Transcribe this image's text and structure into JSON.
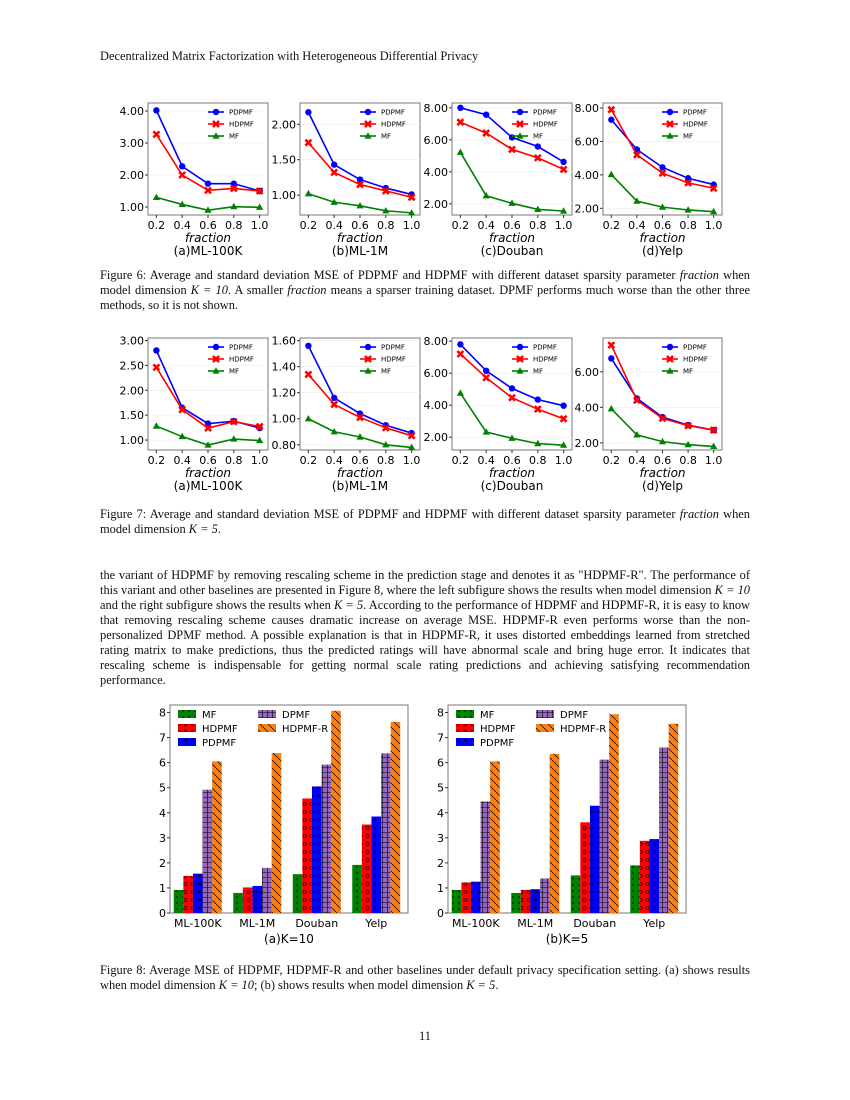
{
  "header": "Decentralized Matrix Factorization with Heterogeneous Differential Privacy",
  "page_number": "11",
  "fig6_caption": {
    "a": "Figure 6:  Average and standard deviation MSE of PDPMF and HDPMF with different dataset sparsity parameter ",
    "m1": "fraction",
    "b": " when model dimension ",
    "m2": "K = 10",
    "c": ". A smaller ",
    "m3": "fraction",
    "d": " means a sparser training dataset. DPMF performs much worse than the other three methods, so it is not shown."
  },
  "fig7_caption": {
    "a": "Figure 7:  Average and standard deviation MSE of PDPMF and HDPMF with different dataset sparsity parameter ",
    "m1": "fraction",
    "b": " when model dimension ",
    "m2": "K = 5",
    "c": "."
  },
  "body": {
    "a": "the variant of HDPMF by removing rescaling scheme in the prediction stage and denotes it as \"HDPMF-R\".  The performance of this variant and other baselines are presented in Figure 8, where the left subfigure shows the results when model dimension ",
    "m1": "K = 10",
    "b": " and the right subfigure shows the results when ",
    "m2": "K = 5",
    "c": ". According to the performance of HDPMF and HDPMF-R, it is easy to know that removing rescaling scheme causes dramatic increase on average MSE. HDPMF-R even performs worse than the non-personalized DPMF method. A possible explanation is that in HDPMF-R, it uses distorted embeddings learned from stretched rating matrix to make predictions, thus the predicted ratings will have abnormal scale and bring huge error. It indicates that rescaling scheme is indispensable for getting normal scale rating predictions and achieving satisfying recommendation performance."
  },
  "fig8_caption": {
    "a": "Figure 8: Average MSE of HDPMF, HDPMF-R and other baselines under default privacy specification setting. (a) shows results when model dimension ",
    "m1": "K = 10",
    "b": "; (b) shows results when model dimension ",
    "m2": "K = 5",
    "c": "."
  },
  "colors": {
    "PDPMF": "#0000ff",
    "HDPMF": "#ff0000",
    "MF": "#008000",
    "DPMF": "#9467bd",
    "HDPMF-R": "#ff7f0e"
  },
  "chart_data": [
    {
      "figure": "6",
      "type": "line",
      "subtitle": "(a)ML-100K",
      "xlabel": "fraction",
      "x": [
        0.2,
        0.4,
        0.6,
        0.8,
        1.0
      ],
      "ylim": [
        0.75,
        4.25
      ],
      "yticks": [
        1,
        2,
        3,
        4
      ],
      "legend": "top-right",
      "series": [
        {
          "name": "PDPMF",
          "values": [
            4.02,
            2.27,
            1.73,
            1.73,
            1.5
          ]
        },
        {
          "name": "HDPMF",
          "values": [
            3.27,
            2.0,
            1.52,
            1.58,
            1.5
          ]
        },
        {
          "name": "MF",
          "values": [
            1.3,
            1.08,
            0.9,
            1.01,
            0.99
          ]
        }
      ]
    },
    {
      "figure": "6",
      "type": "line",
      "subtitle": "(b)ML-1M",
      "xlabel": "fraction",
      "x": [
        0.2,
        0.4,
        0.6,
        0.8,
        1.0
      ],
      "ylim": [
        0.72,
        2.3
      ],
      "yticks": [
        1.0,
        1.5,
        2.0
      ],
      "legend": "top-right",
      "series": [
        {
          "name": "PDPMF",
          "values": [
            2.17,
            1.43,
            1.22,
            1.1,
            1.01
          ]
        },
        {
          "name": "HDPMF",
          "values": [
            1.74,
            1.32,
            1.15,
            1.06,
            0.97
          ]
        },
        {
          "name": "MF",
          "values": [
            1.02,
            0.9,
            0.85,
            0.78,
            0.75
          ]
        }
      ]
    },
    {
      "figure": "6",
      "type": "line",
      "subtitle": "(c)Douban",
      "xlabel": "fraction",
      "x": [
        0.2,
        0.4,
        0.6,
        0.8,
        1.0
      ],
      "ylim": [
        1.3,
        8.3
      ],
      "yticks": [
        2,
        4,
        6,
        8
      ],
      "legend": "top-right",
      "series": [
        {
          "name": "PDPMF",
          "values": [
            8.0,
            7.57,
            6.15,
            5.58,
            4.62
          ]
        },
        {
          "name": "HDPMF",
          "values": [
            7.1,
            6.42,
            5.4,
            4.87,
            4.15
          ]
        },
        {
          "name": "MF",
          "values": [
            5.22,
            2.5,
            2.03,
            1.65,
            1.55
          ]
        }
      ]
    },
    {
      "figure": "6",
      "type": "line",
      "subtitle": "(d)Yelp",
      "xlabel": "fraction",
      "x": [
        0.2,
        0.4,
        0.6,
        0.8,
        1.0
      ],
      "ylim": [
        1.6,
        8.3
      ],
      "yticks": [
        2,
        4,
        6,
        8
      ],
      "legend": "top-right",
      "series": [
        {
          "name": "PDPMF",
          "values": [
            7.3,
            5.52,
            4.45,
            3.8,
            3.42
          ]
        },
        {
          "name": "HDPMF",
          "values": [
            7.9,
            5.2,
            4.1,
            3.52,
            3.2
          ]
        },
        {
          "name": "MF",
          "values": [
            4.02,
            2.43,
            2.07,
            1.9,
            1.8
          ]
        }
      ]
    },
    {
      "figure": "7",
      "type": "line",
      "subtitle": "(a)ML-100K",
      "xlabel": "fraction",
      "x": [
        0.2,
        0.4,
        0.6,
        0.8,
        1.0
      ],
      "ylim": [
        0.8,
        3.05
      ],
      "yticks": [
        1.0,
        1.5,
        2.0,
        2.5,
        3.0
      ],
      "legend": "top-right",
      "series": [
        {
          "name": "PDPMF",
          "values": [
            2.8,
            1.65,
            1.33,
            1.38,
            1.24
          ]
        },
        {
          "name": "HDPMF",
          "values": [
            2.46,
            1.61,
            1.24,
            1.37,
            1.27
          ]
        },
        {
          "name": "MF",
          "values": [
            1.28,
            1.07,
            0.9,
            1.02,
            0.99
          ]
        }
      ]
    },
    {
      "figure": "7",
      "type": "line",
      "subtitle": "(b)ML-1M",
      "xlabel": "fraction",
      "x": [
        0.2,
        0.4,
        0.6,
        0.8,
        1.0
      ],
      "ylim": [
        0.76,
        1.62
      ],
      "yticks": [
        0.8,
        1.0,
        1.2,
        1.4,
        1.6
      ],
      "legend": "top-right",
      "series": [
        {
          "name": "PDPMF",
          "values": [
            1.56,
            1.16,
            1.04,
            0.95,
            0.89
          ]
        },
        {
          "name": "HDPMF",
          "values": [
            1.34,
            1.11,
            1.01,
            0.93,
            0.87
          ]
        },
        {
          "name": "MF",
          "values": [
            1.0,
            0.9,
            0.86,
            0.8,
            0.78
          ]
        }
      ]
    },
    {
      "figure": "7",
      "type": "line",
      "subtitle": "(c)Douban",
      "xlabel": "fraction",
      "x": [
        0.2,
        0.4,
        0.6,
        0.8,
        1.0
      ],
      "ylim": [
        1.2,
        8.2
      ],
      "yticks": [
        2,
        4,
        6,
        8
      ],
      "legend": "top-right",
      "series": [
        {
          "name": "PDPMF",
          "values": [
            7.8,
            6.15,
            5.05,
            4.35,
            3.97
          ]
        },
        {
          "name": "HDPMF",
          "values": [
            7.2,
            5.72,
            4.47,
            3.75,
            3.15
          ]
        },
        {
          "name": "MF",
          "values": [
            4.75,
            2.32,
            1.93,
            1.6,
            1.5
          ]
        }
      ]
    },
    {
      "figure": "7",
      "type": "line",
      "subtitle": "(d)Yelp",
      "xlabel": "fraction",
      "x": [
        0.2,
        0.4,
        0.6,
        0.8,
        1.0
      ],
      "ylim": [
        1.6,
        7.9
      ],
      "yticks": [
        2,
        4,
        6
      ],
      "legend": "top-right",
      "series": [
        {
          "name": "PDPMF",
          "values": [
            6.75,
            4.5,
            3.45,
            3.0,
            2.72
          ]
        },
        {
          "name": "HDPMF",
          "values": [
            7.5,
            4.4,
            3.38,
            2.97,
            2.72
          ]
        },
        {
          "name": "MF",
          "values": [
            3.92,
            2.45,
            2.07,
            1.9,
            1.8
          ]
        }
      ]
    },
    {
      "figure": "8",
      "type": "bar",
      "subtitle": "(a)K=10",
      "categories": [
        "ML-100K",
        "ML-1M",
        "Douban",
        "Yelp"
      ],
      "ylim": [
        0,
        8.3
      ],
      "yticks": [
        0,
        1,
        2,
        3,
        4,
        5,
        6,
        7,
        8
      ],
      "legend": "top-left",
      "series": [
        {
          "name": "MF",
          "values": [
            0.92,
            0.8,
            1.55,
            1.92
          ]
        },
        {
          "name": "HDPMF",
          "values": [
            1.48,
            1.02,
            4.57,
            3.53
          ]
        },
        {
          "name": "PDPMF",
          "values": [
            1.57,
            1.08,
            5.05,
            3.85
          ]
        },
        {
          "name": "DPMF",
          "values": [
            4.92,
            1.8,
            5.92,
            6.37
          ]
        },
        {
          "name": "HDPMF-R",
          "values": [
            6.05,
            6.38,
            8.07,
            7.62
          ]
        }
      ]
    },
    {
      "figure": "8",
      "type": "bar",
      "subtitle": "(b)K=5",
      "categories": [
        "ML-100K",
        "ML-1M",
        "Douban",
        "Yelp"
      ],
      "ylim": [
        0,
        8.3
      ],
      "yticks": [
        0,
        1,
        2,
        3,
        4,
        5,
        6,
        7,
        8
      ],
      "legend": "top-left",
      "series": [
        {
          "name": "MF",
          "values": [
            0.92,
            0.8,
            1.5,
            1.9
          ]
        },
        {
          "name": "HDPMF",
          "values": [
            1.22,
            0.92,
            3.62,
            2.88
          ]
        },
        {
          "name": "PDPMF",
          "values": [
            1.25,
            0.95,
            4.28,
            2.95
          ]
        },
        {
          "name": "DPMF",
          "values": [
            4.45,
            1.38,
            6.12,
            6.6
          ]
        },
        {
          "name": "HDPMF-R",
          "values": [
            6.05,
            6.35,
            7.93,
            7.55
          ]
        }
      ]
    }
  ]
}
